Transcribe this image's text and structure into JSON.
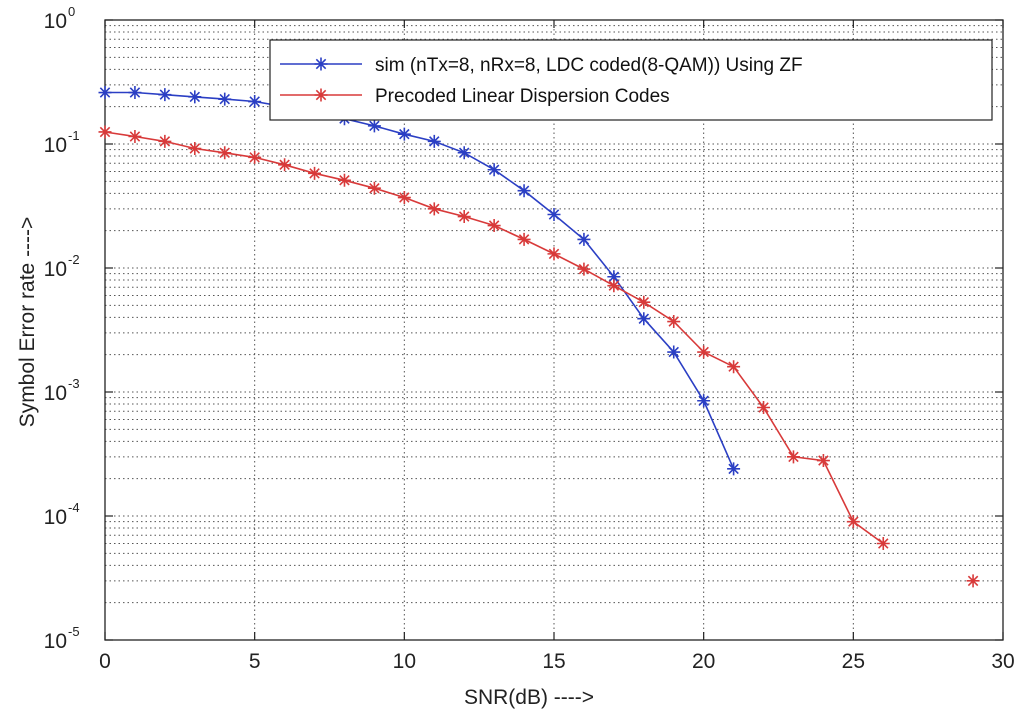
{
  "chart_data": {
    "type": "line",
    "title": "",
    "xlabel": "SNR(dB) ---->",
    "ylabel": "Symbol Error rate ---->",
    "xlim": [
      0,
      30
    ],
    "ylim": [
      1e-05,
      1
    ],
    "yscale": "log",
    "grid": true,
    "legend_position": "top-right",
    "xticks": [
      "0",
      "5",
      "10",
      "15",
      "20",
      "25",
      "30"
    ],
    "yticks": [
      {
        "base": "10",
        "exp": "0"
      },
      {
        "base": "10",
        "exp": "-1"
      },
      {
        "base": "10",
        "exp": "-2"
      },
      {
        "base": "10",
        "exp": "-3"
      },
      {
        "base": "10",
        "exp": "-4"
      },
      {
        "base": "10",
        "exp": "-5"
      }
    ],
    "series": [
      {
        "name": "sim (nTx=8, nRx=8, LDC coded(8-QAM)) Using ZF",
        "color": "#2b3fc4",
        "marker": "asterisk",
        "x": [
          0,
          1,
          2,
          3,
          4,
          5,
          6,
          7,
          8,
          9,
          10,
          11,
          12,
          13,
          14,
          15,
          16,
          17,
          18,
          19,
          20,
          21
        ],
        "y": [
          0.26,
          0.26,
          0.25,
          0.24,
          0.23,
          0.22,
          0.2,
          0.18,
          0.16,
          0.14,
          0.12,
          0.105,
          0.085,
          0.062,
          0.042,
          0.027,
          0.017,
          0.0085,
          0.0039,
          0.0021,
          0.00085,
          0.00024
        ]
      },
      {
        "name": "Precoded Linear Dispersion Codes",
        "color": "#d83a3a",
        "marker": "asterisk",
        "x": [
          0,
          1,
          2,
          3,
          4,
          5,
          6,
          7,
          8,
          9,
          10,
          11,
          12,
          13,
          14,
          15,
          16,
          17,
          18,
          19,
          20,
          21,
          22,
          23,
          24,
          25,
          26
        ],
        "y": [
          0.125,
          0.115,
          0.105,
          0.092,
          0.085,
          0.078,
          0.068,
          0.058,
          0.051,
          0.044,
          0.037,
          0.03,
          0.026,
          0.022,
          0.017,
          0.013,
          0.0098,
          0.0072,
          0.0053,
          0.0037,
          0.0021,
          0.0016,
          0.00075,
          0.0003,
          0.00028,
          9e-05,
          6e-05
        ]
      }
    ],
    "extra_points": [
      {
        "x": 29,
        "y": 3e-05,
        "color": "#d83a3a",
        "marker": "asterisk"
      }
    ]
  }
}
